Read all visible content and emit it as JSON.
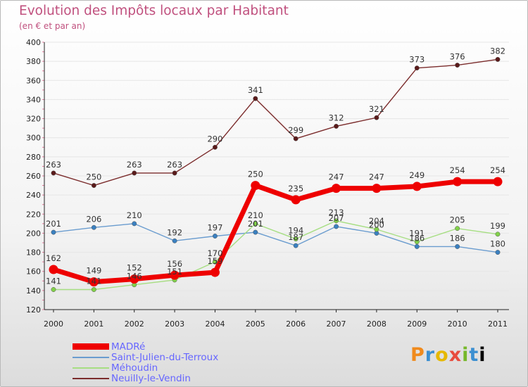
{
  "colors": {
    "title": "#c0507e",
    "axis": "#222222",
    "grid": "#e6e6e6"
  },
  "chart_data": {
    "type": "line",
    "title": "Evolution des Impôts locaux par Habitant",
    "subtitle": "(en € et par an)",
    "xlabel": "",
    "ylabel": "",
    "x": [
      "2000",
      "2001",
      "2002",
      "2003",
      "2004",
      "2005",
      "2006",
      "2007",
      "2008",
      "2009",
      "2010",
      "2011"
    ],
    "ylim": [
      120,
      400
    ],
    "yticks": [
      120,
      140,
      160,
      180,
      200,
      220,
      240,
      260,
      280,
      300,
      320,
      340,
      360,
      380,
      400
    ],
    "series": [
      {
        "name": "Neuilly-le-Vendin",
        "color": "#7b2c2c",
        "marker": "#5a1a1a",
        "weight": "thin",
        "values": [
          263,
          250,
          263,
          263,
          290,
          341,
          299,
          312,
          321,
          373,
          376,
          382
        ]
      },
      {
        "name": "Saint-Julien-du-Terroux",
        "color": "#6a9ccf",
        "marker": "#3a80c0",
        "weight": "thin",
        "values": [
          201,
          206,
          210,
          192,
          197,
          201,
          187,
          207,
          200,
          186,
          186,
          180
        ]
      },
      {
        "name": "Méhoudin",
        "color": "#a6de82",
        "marker": "#82d14a",
        "weight": "thin",
        "values": [
          141,
          141,
          146,
          151,
          170,
          210,
          194,
          213,
          204,
          191,
          205,
          199
        ]
      },
      {
        "name": "MADRé",
        "color": "#ee0000",
        "marker": "#ee0000",
        "weight": "thick",
        "values": [
          162,
          149,
          152,
          156,
          159,
          250,
          235,
          247,
          247,
          249,
          254,
          254
        ]
      }
    ],
    "legend_order": [
      "MADRé",
      "Saint-Julien-du-Terroux",
      "Méhoudin",
      "Neuilly-le-Vendin"
    ]
  },
  "legend": {
    "items": [
      {
        "label": "MADRé"
      },
      {
        "label": "Saint-Julien-du-Terroux"
      },
      {
        "label": "Méhoudin"
      },
      {
        "label": "Neuilly-le-Vendin"
      }
    ]
  },
  "logo": {
    "letters": [
      "P",
      "r",
      "o",
      "x",
      "i",
      "t",
      "i"
    ]
  }
}
